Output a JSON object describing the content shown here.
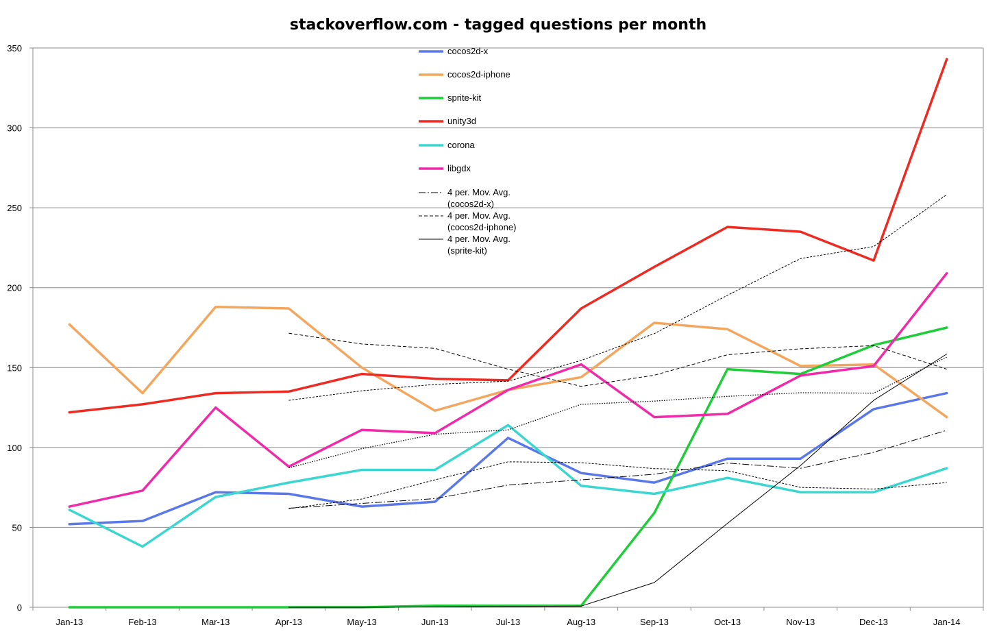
{
  "chart_data": {
    "type": "line",
    "title": "stackoverflow.com - tagged questions per month",
    "xlabel": "",
    "ylabel": "",
    "ylim": [
      0,
      350
    ],
    "yticks": [
      0,
      50,
      100,
      150,
      200,
      250,
      300,
      350
    ],
    "grid": true,
    "legend_position": "top-center",
    "categories": [
      "Jan-13",
      "Feb-13",
      "Mar-13",
      "Apr-13",
      "May-13",
      "Jun-13",
      "Jul-13",
      "Aug-13",
      "Sep-13",
      "Oct-13",
      "Nov-13",
      "Dec-13",
      "Jan-14"
    ],
    "series": [
      {
        "name": "cocos2d-x",
        "color": "#5b78e8",
        "style": "solid",
        "width": 3.5,
        "values": [
          52,
          54,
          72,
          71,
          63,
          66,
          106,
          84,
          78,
          93,
          93,
          124,
          134
        ]
      },
      {
        "name": "cocos2d-iphone",
        "color": "#f2a65e",
        "style": "solid",
        "width": 3.5,
        "values": [
          177,
          134,
          188,
          187,
          150,
          123,
          136,
          144,
          178,
          174,
          151,
          152,
          119
        ]
      },
      {
        "name": "sprite-kit",
        "color": "#1fcc3a",
        "style": "solid",
        "width": 3.5,
        "values": [
          0,
          0,
          0,
          0,
          0,
          1,
          1,
          1,
          59,
          149,
          146,
          164,
          175
        ]
      },
      {
        "name": "unity3d",
        "color": "#ee2b22",
        "style": "solid",
        "width": 3.5,
        "values": [
          122,
          127,
          134,
          135,
          146,
          143,
          142,
          187,
          213,
          238,
          235,
          217,
          343
        ]
      },
      {
        "name": "corona",
        "color": "#3cd6d0",
        "style": "solid",
        "width": 3.5,
        "values": [
          61,
          38,
          69,
          78,
          86,
          86,
          114,
          76,
          71,
          81,
          72,
          72,
          87
        ]
      },
      {
        "name": "libgdx",
        "color": "#f02aa8",
        "style": "solid",
        "width": 3.5,
        "values": [
          63,
          73,
          125,
          88,
          111,
          109,
          136,
          152,
          119,
          121,
          145,
          151,
          209
        ]
      },
      {
        "name": "4 per. Mov. Avg. (cocos2d-x)",
        "color": "#000000",
        "style": "dashdot",
        "width": 1,
        "values": [
          null,
          null,
          null,
          62,
          65,
          68,
          76.5,
          79.75,
          83.25,
          90.25,
          87,
          97,
          110.75
        ]
      },
      {
        "name": "4 per. Mov. Avg. (cocos2d-iphone)",
        "color": "#000000",
        "style": "dashed",
        "width": 1,
        "values": [
          null,
          null,
          null,
          171.5,
          164.75,
          162,
          149,
          138.25,
          145.25,
          158,
          161.75,
          163.75,
          149
        ]
      },
      {
        "name": "4 per. Mov. Avg. (sprite-kit)",
        "color": "#000000",
        "style": "solid",
        "width": 1,
        "values": [
          null,
          null,
          null,
          0,
          0,
          0.25,
          0.5,
          0.75,
          15.5,
          52.5,
          88.75,
          129.5,
          158.5
        ]
      },
      {
        "name": "",
        "color": "#000000",
        "style": "dashed-fine",
        "width": 1,
        "legend": false,
        "values": [
          null,
          null,
          null,
          129.5,
          135.5,
          139.5,
          141.5,
          154.5,
          171.25,
          195.25,
          218.25,
          225.75,
          258.25
        ]
      },
      {
        "name": "",
        "color": "#000000",
        "style": "dashed-fine",
        "width": 1,
        "legend": false,
        "values": [
          null,
          null,
          null,
          61.75,
          67.75,
          79.75,
          91,
          90.5,
          86.75,
          85.5,
          75,
          74,
          78
        ]
      },
      {
        "name": "",
        "color": "#000000",
        "style": "dotted",
        "width": 1.3,
        "legend": false,
        "values": [
          null,
          null,
          null,
          87.25,
          99.25,
          108.25,
          111,
          127,
          129,
          132,
          134.25,
          134,
          156.5
        ]
      }
    ]
  }
}
